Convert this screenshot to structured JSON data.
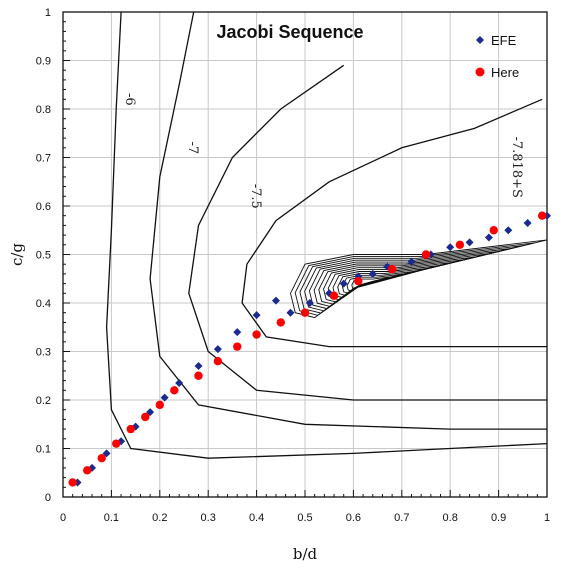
{
  "chart_data": {
    "type": "scatter",
    "title": "Jacobi Sequence",
    "xlabel": "b/d",
    "ylabel": "c/g",
    "xlim": [
      0,
      1
    ],
    "ylim": [
      0,
      1
    ],
    "x_ticks": [
      "0",
      "0.1",
      "0.2",
      "0.3",
      "0.4",
      "0.5",
      "0.6",
      "0.7",
      "0.8",
      "0.9",
      "1"
    ],
    "y_ticks": [
      "0",
      "0.1",
      "0.2",
      "0.3",
      "0.4",
      "0.5",
      "0.6",
      "0.7",
      "0.8",
      "0.9",
      "1"
    ],
    "grid": true,
    "legend_position": "top-right",
    "contour_labels": [
      "-6",
      "-7",
      "-7.5",
      "-7.818+S"
    ],
    "series": [
      {
        "name": "EFE",
        "marker": "diamond",
        "color": "#1a2a8f",
        "x": [
          0.03,
          0.06,
          0.09,
          0.12,
          0.15,
          0.18,
          0.21,
          0.24,
          0.28,
          0.32,
          0.36,
          0.4,
          0.44,
          0.47,
          0.51,
          0.55,
          0.58,
          0.61,
          0.64,
          0.67,
          0.72,
          0.76,
          0.8,
          0.84,
          0.88,
          0.92,
          0.96,
          1.0
        ],
        "y": [
          0.03,
          0.06,
          0.09,
          0.115,
          0.145,
          0.175,
          0.205,
          0.235,
          0.27,
          0.305,
          0.34,
          0.375,
          0.405,
          0.38,
          0.4,
          0.42,
          0.44,
          0.455,
          0.46,
          0.475,
          0.485,
          0.5,
          0.515,
          0.525,
          0.535,
          0.55,
          0.565,
          0.58
        ]
      },
      {
        "name": "Here",
        "marker": "circle",
        "color": "#ff0000",
        "x": [
          0.02,
          0.05,
          0.08,
          0.11,
          0.14,
          0.17,
          0.2,
          0.23,
          0.28,
          0.32,
          0.36,
          0.4,
          0.45,
          0.5,
          0.56,
          0.61,
          0.68,
          0.75,
          0.82,
          0.89,
          0.99
        ],
        "y": [
          0.03,
          0.055,
          0.08,
          0.11,
          0.14,
          0.165,
          0.19,
          0.22,
          0.25,
          0.28,
          0.31,
          0.335,
          0.36,
          0.38,
          0.415,
          0.445,
          0.47,
          0.5,
          0.52,
          0.55,
          0.58
        ]
      }
    ]
  }
}
